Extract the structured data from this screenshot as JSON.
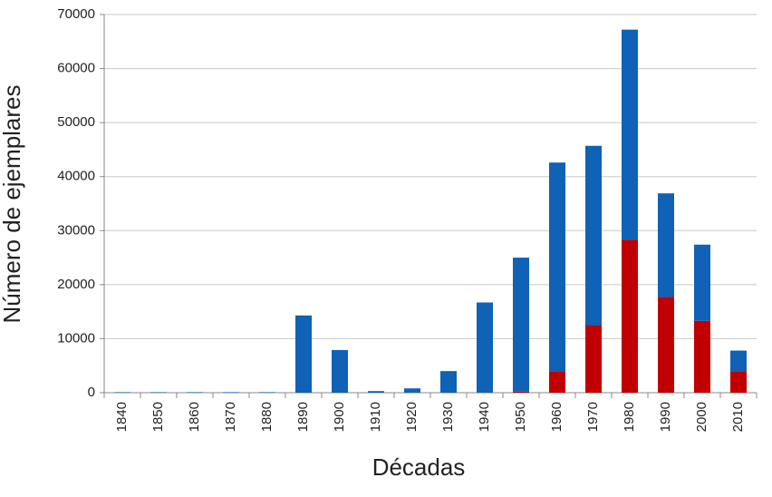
{
  "chart_data": {
    "type": "stacked_bar",
    "y_label": "Número de ejemplares",
    "x_label": "Décadas",
    "categories": [
      "1840",
      "1850",
      "1860",
      "1870",
      "1880",
      "1890",
      "1900",
      "1910",
      "1920",
      "1930",
      "1940",
      "1950",
      "1960",
      "1970",
      "1980",
      "1990",
      "2000",
      "2010"
    ],
    "series": [
      {
        "color": "#c00000",
        "values": [
          0,
          0,
          0,
          0,
          0,
          0,
          0,
          0,
          0,
          0,
          0,
          200,
          4000,
          12500,
          28300,
          17700,
          13300,
          4000
        ]
      },
      {
        "color": "#0f62b5",
        "values": [
          100,
          100,
          100,
          100,
          100,
          14300,
          7900,
          300,
          800,
          4000,
          16700,
          24800,
          38600,
          33200,
          38900,
          19200,
          14100,
          3800
        ]
      }
    ],
    "ylim": [
      0,
      70000
    ],
    "yticks": [
      0,
      10000,
      20000,
      30000,
      40000,
      50000,
      60000,
      70000
    ],
    "grid": true
  }
}
